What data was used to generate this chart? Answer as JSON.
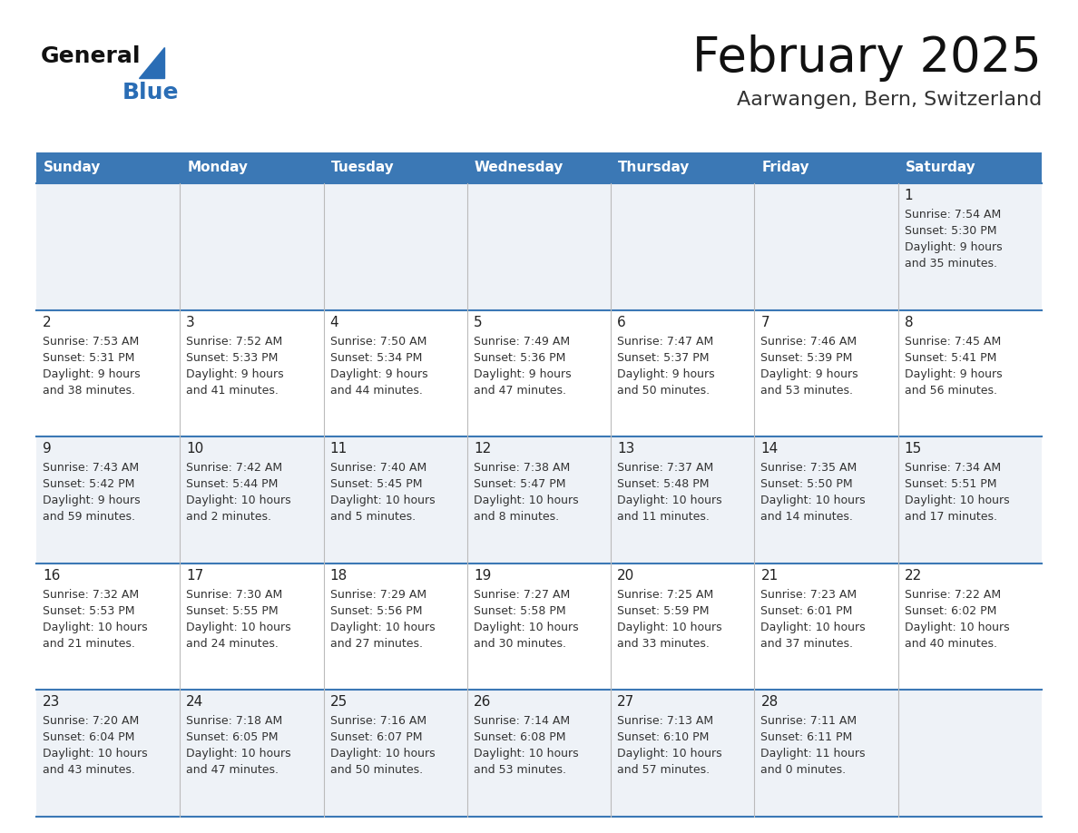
{
  "title": "February 2025",
  "subtitle": "Aarwangen, Bern, Switzerland",
  "days_of_week": [
    "Sunday",
    "Monday",
    "Tuesday",
    "Wednesday",
    "Thursday",
    "Friday",
    "Saturday"
  ],
  "header_bg": "#3b78b5",
  "header_text": "#ffffff",
  "row_bg_odd": "#eef2f7",
  "row_bg_even": "#ffffff",
  "separator_color": "#3b78b5",
  "day_number_color": "#222222",
  "cell_text_color": "#333333",
  "title_color": "#111111",
  "subtitle_color": "#333333",
  "logo_general_color": "#111111",
  "logo_blue_color": "#2a6db5",
  "calendar_data": [
    {
      "day": 1,
      "col": 6,
      "row": 0,
      "sunrise": "7:54 AM",
      "sunset": "5:30 PM",
      "daylight": "9 hours and 35 minutes."
    },
    {
      "day": 2,
      "col": 0,
      "row": 1,
      "sunrise": "7:53 AM",
      "sunset": "5:31 PM",
      "daylight": "9 hours and 38 minutes."
    },
    {
      "day": 3,
      "col": 1,
      "row": 1,
      "sunrise": "7:52 AM",
      "sunset": "5:33 PM",
      "daylight": "9 hours and 41 minutes."
    },
    {
      "day": 4,
      "col": 2,
      "row": 1,
      "sunrise": "7:50 AM",
      "sunset": "5:34 PM",
      "daylight": "9 hours and 44 minutes."
    },
    {
      "day": 5,
      "col": 3,
      "row": 1,
      "sunrise": "7:49 AM",
      "sunset": "5:36 PM",
      "daylight": "9 hours and 47 minutes."
    },
    {
      "day": 6,
      "col": 4,
      "row": 1,
      "sunrise": "7:47 AM",
      "sunset": "5:37 PM",
      "daylight": "9 hours and 50 minutes."
    },
    {
      "day": 7,
      "col": 5,
      "row": 1,
      "sunrise": "7:46 AM",
      "sunset": "5:39 PM",
      "daylight": "9 hours and 53 minutes."
    },
    {
      "day": 8,
      "col": 6,
      "row": 1,
      "sunrise": "7:45 AM",
      "sunset": "5:41 PM",
      "daylight": "9 hours and 56 minutes."
    },
    {
      "day": 9,
      "col": 0,
      "row": 2,
      "sunrise": "7:43 AM",
      "sunset": "5:42 PM",
      "daylight": "9 hours and 59 minutes."
    },
    {
      "day": 10,
      "col": 1,
      "row": 2,
      "sunrise": "7:42 AM",
      "sunset": "5:44 PM",
      "daylight": "10 hours and 2 minutes."
    },
    {
      "day": 11,
      "col": 2,
      "row": 2,
      "sunrise": "7:40 AM",
      "sunset": "5:45 PM",
      "daylight": "10 hours and 5 minutes."
    },
    {
      "day": 12,
      "col": 3,
      "row": 2,
      "sunrise": "7:38 AM",
      "sunset": "5:47 PM",
      "daylight": "10 hours and 8 minutes."
    },
    {
      "day": 13,
      "col": 4,
      "row": 2,
      "sunrise": "7:37 AM",
      "sunset": "5:48 PM",
      "daylight": "10 hours and 11 minutes."
    },
    {
      "day": 14,
      "col": 5,
      "row": 2,
      "sunrise": "7:35 AM",
      "sunset": "5:50 PM",
      "daylight": "10 hours and 14 minutes."
    },
    {
      "day": 15,
      "col": 6,
      "row": 2,
      "sunrise": "7:34 AM",
      "sunset": "5:51 PM",
      "daylight": "10 hours and 17 minutes."
    },
    {
      "day": 16,
      "col": 0,
      "row": 3,
      "sunrise": "7:32 AM",
      "sunset": "5:53 PM",
      "daylight": "10 hours and 21 minutes."
    },
    {
      "day": 17,
      "col": 1,
      "row": 3,
      "sunrise": "7:30 AM",
      "sunset": "5:55 PM",
      "daylight": "10 hours and 24 minutes."
    },
    {
      "day": 18,
      "col": 2,
      "row": 3,
      "sunrise": "7:29 AM",
      "sunset": "5:56 PM",
      "daylight": "10 hours and 27 minutes."
    },
    {
      "day": 19,
      "col": 3,
      "row": 3,
      "sunrise": "7:27 AM",
      "sunset": "5:58 PM",
      "daylight": "10 hours and 30 minutes."
    },
    {
      "day": 20,
      "col": 4,
      "row": 3,
      "sunrise": "7:25 AM",
      "sunset": "5:59 PM",
      "daylight": "10 hours and 33 minutes."
    },
    {
      "day": 21,
      "col": 5,
      "row": 3,
      "sunrise": "7:23 AM",
      "sunset": "6:01 PM",
      "daylight": "10 hours and 37 minutes."
    },
    {
      "day": 22,
      "col": 6,
      "row": 3,
      "sunrise": "7:22 AM",
      "sunset": "6:02 PM",
      "daylight": "10 hours and 40 minutes."
    },
    {
      "day": 23,
      "col": 0,
      "row": 4,
      "sunrise": "7:20 AM",
      "sunset": "6:04 PM",
      "daylight": "10 hours and 43 minutes."
    },
    {
      "day": 24,
      "col": 1,
      "row": 4,
      "sunrise": "7:18 AM",
      "sunset": "6:05 PM",
      "daylight": "10 hours and 47 minutes."
    },
    {
      "day": 25,
      "col": 2,
      "row": 4,
      "sunrise": "7:16 AM",
      "sunset": "6:07 PM",
      "daylight": "10 hours and 50 minutes."
    },
    {
      "day": 26,
      "col": 3,
      "row": 4,
      "sunrise": "7:14 AM",
      "sunset": "6:08 PM",
      "daylight": "10 hours and 53 minutes."
    },
    {
      "day": 27,
      "col": 4,
      "row": 4,
      "sunrise": "7:13 AM",
      "sunset": "6:10 PM",
      "daylight": "10 hours and 57 minutes."
    },
    {
      "day": 28,
      "col": 5,
      "row": 4,
      "sunrise": "7:11 AM",
      "sunset": "6:11 PM",
      "daylight": "11 hours and 0 minutes."
    }
  ]
}
